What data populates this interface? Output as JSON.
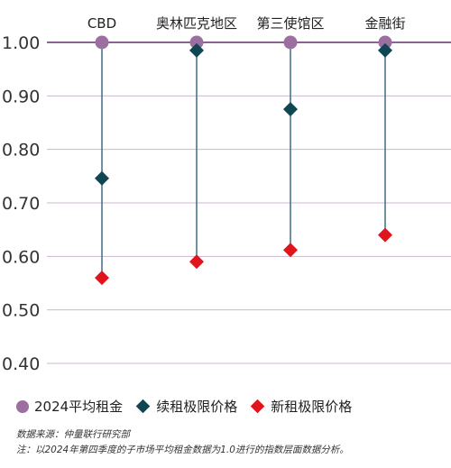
{
  "chart_data": {
    "type": "scatter",
    "title": "",
    "xlabel": "",
    "ylabel": "",
    "categories": [
      "CBD",
      "奥林匹克地区",
      "第三使馆区",
      "金融街"
    ],
    "ylim": [
      0.4,
      1.0
    ],
    "yticks": [
      "1.00",
      "0.90",
      "0.80",
      "0.70",
      "0.60",
      "0.50",
      "0.40"
    ],
    "ytick_values": [
      1.0,
      0.9,
      0.8,
      0.7,
      0.6,
      0.5,
      0.4
    ],
    "grid": true,
    "legend_position": "bottom-left",
    "series": [
      {
        "name": "2024平均租金",
        "marker": "circle",
        "color": "#9b6fa0",
        "values": [
          1.0,
          1.0,
          1.0,
          1.0
        ]
      },
      {
        "name": "续租极限价格",
        "marker": "diamond",
        "color": "#0e4653",
        "values": [
          0.746,
          0.985,
          0.875,
          0.985
        ]
      },
      {
        "name": "新租极限价格",
        "marker": "diamond",
        "color": "#e0141c",
        "values": [
          0.56,
          0.59,
          0.612,
          0.64
        ]
      }
    ],
    "colors": {
      "grid": "#cbb8d0",
      "baseline": "#8a6490",
      "stem": "#3f6f86",
      "ticktext": "#333333"
    }
  },
  "notes": {
    "source": "数据来源：仲量联行研究部",
    "note": "注：以2024年第四季度的子市场平均租金数据为1.0进行的指数层面数据分析。"
  }
}
